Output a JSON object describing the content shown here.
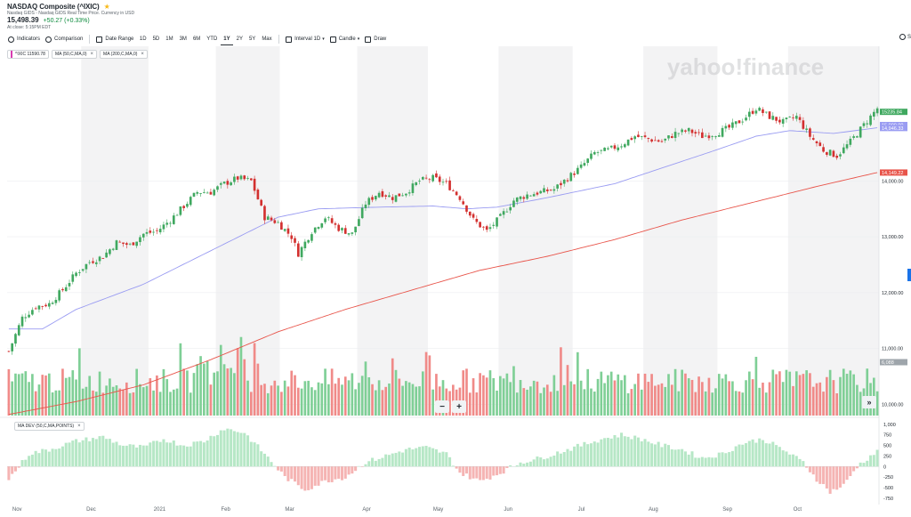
{
  "header": {
    "title": "NASDAQ Composite (^IXIC)",
    "subtitle": "Nasdaq GIDS - Nasdaq GIDS Real Time Price. Currency in USD",
    "price": "15,498.39",
    "change": "+50.27 (+0.33%)",
    "as_of": "At close: 5:15PM EDT",
    "star_icon": "star-icon",
    "change_color": "#0b8a3b"
  },
  "toolbar": {
    "indicators": "Indicators",
    "comparison": "Comparison",
    "date_range": "Date Range",
    "ranges": [
      "1D",
      "5D",
      "1M",
      "3M",
      "6M",
      "YTD",
      "1Y",
      "2Y",
      "5Y",
      "Max"
    ],
    "active_range": "1Y",
    "interval_label": "Interval",
    "interval_value": "1D",
    "chart_type": "Candle",
    "draw": "Draw",
    "settings_label": "S"
  },
  "legend": {
    "symbol": "^IXIC 11590.78",
    "ma50": "MA (50,C,MA,0)",
    "ma200": "MA (200,C,MA,0)",
    "ma_dev": "MA DEV (50,C,MA,POINTS)",
    "close_symbol": "×"
  },
  "watermark": "yahoo!finance",
  "zoom": {
    "minus": "−",
    "plus": "+",
    "end": "»"
  },
  "colors": {
    "up": "#3fa85f",
    "down": "#d3302f",
    "ma50": "#9a9cf2",
    "ma200": "#e8544a",
    "volume_up": "#7fcf96",
    "volume_down": "#f08a88",
    "dev_up": "#b6e7c6",
    "dev_down": "#f5b4b3",
    "shade": "#f3f3f4"
  },
  "chart_data": {
    "type": "candlestick",
    "price_axis": {
      "range": [
        9800,
        16250
      ],
      "ticks": [
        {
          "value": 10000,
          "label": "10,000.00"
        },
        {
          "value": 11000,
          "label": "11,000.00"
        },
        {
          "value": 12000,
          "label": "12,000.00"
        },
        {
          "value": 13000,
          "label": "13,000.00"
        },
        {
          "value": 14000,
          "label": "14,000.00"
        }
      ],
      "tags": [
        {
          "value": 15235.84,
          "label": "15235.84",
          "color": "#3fa85f"
        },
        {
          "value": 15000,
          "label": "15,000.00",
          "color": "#9a9cf2"
        },
        {
          "value": 14946.33,
          "label": "14,946.33",
          "color": "#9a9cf2"
        },
        {
          "value": 14149.22,
          "label": "14,149.22",
          "color": "#e8544a"
        },
        {
          "value": 6088,
          "label": "6,088",
          "color": "#9ea5ab"
        }
      ]
    },
    "dev_axis": {
      "range": [
        -900,
        1100
      ],
      "ticks": [
        {
          "value": 1000,
          "label": "1,000"
        },
        {
          "value": 750,
          "label": "750"
        },
        {
          "value": 500,
          "label": "500"
        },
        {
          "value": 250,
          "label": "250"
        },
        {
          "value": 0,
          "label": "0"
        },
        {
          "value": -250,
          "label": "-250"
        },
        {
          "value": -500,
          "label": "-500"
        },
        {
          "value": -750,
          "label": "-750"
        }
      ]
    },
    "x_labels": [
      "Nov",
      "Dec",
      "2021",
      "Feb",
      "Mar",
      "Apr",
      "May",
      "Jun",
      "Jul",
      "Aug",
      "Sep",
      "Oct"
    ],
    "grid": true,
    "price_anchors": [
      [
        0,
        10950
      ],
      [
        4,
        11550
      ],
      [
        8,
        11750
      ],
      [
        12,
        11800
      ],
      [
        16,
        12050
      ],
      [
        20,
        12350
      ],
      [
        24,
        12550
      ],
      [
        28,
        12650
      ],
      [
        32,
        12900
      ],
      [
        36,
        12850
      ],
      [
        40,
        13050
      ],
      [
        44,
        13100
      ],
      [
        48,
        13300
      ],
      [
        52,
        13550
      ],
      [
        56,
        13800
      ],
      [
        60,
        13800
      ],
      [
        64,
        13950
      ],
      [
        68,
        14050
      ],
      [
        72,
        14000
      ],
      [
        76,
        13350
      ],
      [
        80,
        13250
      ],
      [
        84,
        13000
      ],
      [
        86,
        12700
      ],
      [
        90,
        13100
      ],
      [
        94,
        13350
      ],
      [
        98,
        13150
      ],
      [
        102,
        13050
      ],
      [
        106,
        13600
      ],
      [
        110,
        13800
      ],
      [
        114,
        13700
      ],
      [
        118,
        13800
      ],
      [
        122,
        14000
      ],
      [
        126,
        14050
      ],
      [
        130,
        13950
      ],
      [
        134,
        13700
      ],
      [
        138,
        13300
      ],
      [
        142,
        13100
      ],
      [
        146,
        13350
      ],
      [
        150,
        13650
      ],
      [
        154,
        13750
      ],
      [
        158,
        13800
      ],
      [
        162,
        13850
      ],
      [
        166,
        14050
      ],
      [
        170,
        14250
      ],
      [
        174,
        14500
      ],
      [
        178,
        14550
      ],
      [
        182,
        14650
      ],
      [
        186,
        14800
      ],
      [
        190,
        14750
      ],
      [
        194,
        14700
      ],
      [
        198,
        14850
      ],
      [
        202,
        14900
      ],
      [
        206,
        14800
      ],
      [
        210,
        14850
      ],
      [
        214,
        14950
      ],
      [
        218,
        15100
      ],
      [
        222,
        15300
      ],
      [
        226,
        15150
      ],
      [
        230,
        15050
      ],
      [
        234,
        15150
      ],
      [
        238,
        14800
      ],
      [
        242,
        14550
      ],
      [
        246,
        14450
      ],
      [
        250,
        14700
      ],
      [
        254,
        15000
      ],
      [
        258,
        15300
      ]
    ],
    "ma50_anchors": [
      [
        0,
        11350
      ],
      [
        10,
        11350
      ],
      [
        20,
        11700
      ],
      [
        40,
        12150
      ],
      [
        60,
        12750
      ],
      [
        70,
        13050
      ],
      [
        80,
        13350
      ],
      [
        92,
        13500
      ],
      [
        110,
        13530
      ],
      [
        126,
        13550
      ],
      [
        136,
        13500
      ],
      [
        145,
        13530
      ],
      [
        160,
        13700
      ],
      [
        180,
        13950
      ],
      [
        195,
        14250
      ],
      [
        210,
        14550
      ],
      [
        222,
        14800
      ],
      [
        232,
        14900
      ],
      [
        245,
        14850
      ],
      [
        258,
        14950
      ]
    ],
    "ma200_anchors": [
      [
        0,
        9820
      ],
      [
        20,
        10050
      ],
      [
        40,
        10350
      ],
      [
        60,
        10800
      ],
      [
        80,
        11300
      ],
      [
        100,
        11700
      ],
      [
        120,
        12050
      ],
      [
        140,
        12400
      ],
      [
        160,
        12650
      ],
      [
        180,
        12950
      ],
      [
        200,
        13300
      ],
      [
        220,
        13600
      ],
      [
        240,
        13900
      ],
      [
        258,
        14150
      ]
    ],
    "dev_anchors": [
      [
        0,
        -300
      ],
      [
        6,
        300
      ],
      [
        12,
        400
      ],
      [
        20,
        600
      ],
      [
        28,
        700
      ],
      [
        34,
        500
      ],
      [
        40,
        450
      ],
      [
        46,
        650
      ],
      [
        52,
        500
      ],
      [
        58,
        600
      ],
      [
        64,
        900
      ],
      [
        70,
        800
      ],
      [
        76,
        300
      ],
      [
        82,
        -250
      ],
      [
        88,
        -550
      ],
      [
        94,
        -350
      ],
      [
        100,
        -250
      ],
      [
        106,
        100
      ],
      [
        112,
        250
      ],
      [
        118,
        400
      ],
      [
        124,
        450
      ],
      [
        130,
        300
      ],
      [
        134,
        -150
      ],
      [
        140,
        -350
      ],
      [
        146,
        -150
      ],
      [
        152,
        100
      ],
      [
        158,
        200
      ],
      [
        164,
        350
      ],
      [
        170,
        500
      ],
      [
        176,
        650
      ],
      [
        182,
        750
      ],
      [
        188,
        650
      ],
      [
        194,
        500
      ],
      [
        200,
        400
      ],
      [
        206,
        200
      ],
      [
        212,
        300
      ],
      [
        218,
        550
      ],
      [
        224,
        650
      ],
      [
        230,
        400
      ],
      [
        236,
        100
      ],
      [
        240,
        -300
      ],
      [
        244,
        -600
      ],
      [
        248,
        -450
      ],
      [
        252,
        0
      ],
      [
        256,
        250
      ],
      [
        258,
        350
      ]
    ],
    "bar_count": 259
  }
}
